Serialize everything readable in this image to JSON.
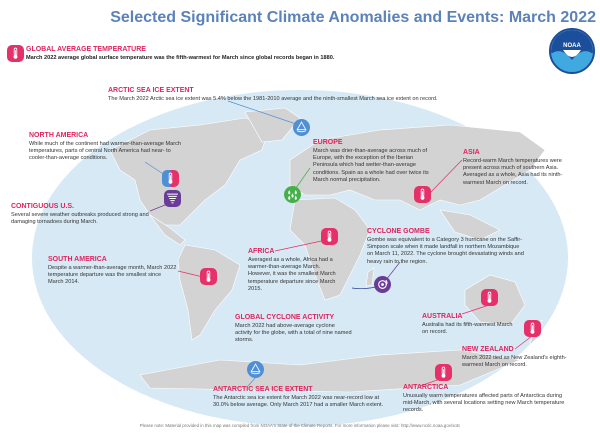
{
  "title": "Selected Significant Climate Anomalies and Events: March 2022",
  "logo_text": "NOAA",
  "colors": {
    "title": "#5b82b9",
    "heading": "#e0245e",
    "ocean": "#d6e9f5",
    "land": "#d3d3d3",
    "warm": "#e5306a",
    "cold": "#4f8fd6",
    "wet": "#45b04a",
    "storm": "#6b3c97"
  },
  "events": {
    "global": {
      "title": "Global Average Temperature",
      "text": "March 2022 average global surface temperature was the fifth-warmest for March since global records began in 1880.",
      "icon": "thermometer-icon"
    },
    "arctic": {
      "title": "Arctic Sea Ice Extent",
      "text": "The March 2022 Arctic sea ice extent was 5.4% below the 1981-2010 average and the ninth-smallest March sea ice extent on record.",
      "icon": "sea-ice-icon"
    },
    "north_america": {
      "title": "North America",
      "text": "While much of the continent had warmer-than-average March temperatures, parts of central North America had near- to cooler-than-average conditions.",
      "icon": "thermometer-icon"
    },
    "europe": {
      "title": "Europe",
      "text": "March was drier-than-average across much of Europe, with the exception of the Iberian Peninsula which had wetter-than-average conditions. Spain as a whole had over twice its March normal precipitation.",
      "icon": "rain-drops-icon"
    },
    "asia": {
      "title": "Asia",
      "text": "Record-warm March temperatures were present across much of southern Asia. Averaged as a whole, Asia had its ninth-warmest March on record.",
      "icon": "thermometer-icon"
    },
    "contiguous_us": {
      "title": "Contiguous U.S.",
      "text": "Several severe weather outbreaks produced strong and damaging tornadoes during March.",
      "icon": "tornado-icon"
    },
    "south_america": {
      "title": "South America",
      "text": "Despite a warmer-than-average month, March 2022 temperature departure was the smallest since March 2014.",
      "icon": "thermometer-icon"
    },
    "africa": {
      "title": "Africa",
      "text": "Averaged as a whole, Africa had a warmer-than-average March. However, it was the smallest March temperature departure since March 2015.",
      "icon": "thermometer-icon"
    },
    "gombe": {
      "title": "Cyclone Gombe",
      "text": "Gombe was equivalent to a Category 3 hurricane on the Saffir-Simpson scale when it made landfall in northern Mozambique on March 11, 2022. The cyclone brought devastating winds and heavy rain to the region.",
      "icon": "cyclone-icon"
    },
    "cyclone_activity": {
      "title": "Global Cyclone Activity",
      "text": "March 2022 had above-average cyclone activity for the globe, with a total of nine named storms."
    },
    "australia": {
      "title": "Australia",
      "text": "Australia had its fifth-warmest March on record.",
      "icon": "thermometer-icon"
    },
    "new_zealand": {
      "title": "New Zealand",
      "text": "March 2022 tied as New Zealand's eighth-warmest March on record.",
      "icon": "thermometer-icon"
    },
    "antarctic_ice": {
      "title": "Antarctic Sea Ice Extent",
      "text": "The Antarctic sea ice extent for March 2022 was near-record low at 30.0% below average. Only March 2017 had a smaller March extent.",
      "icon": "sea-ice-icon"
    },
    "antarctica": {
      "title": "Antarctica",
      "text": "Unusually warm temperatures affected parts of Antarctica during mid-March, with several locations setting new March temperature records.",
      "icon": "thermometer-icon"
    }
  },
  "footer": "Please note: Material provided in this map was compiled from NOAA's State of the Climate Reports. For more information please visit: http://www.ncdc.noaa.gov/sotc"
}
